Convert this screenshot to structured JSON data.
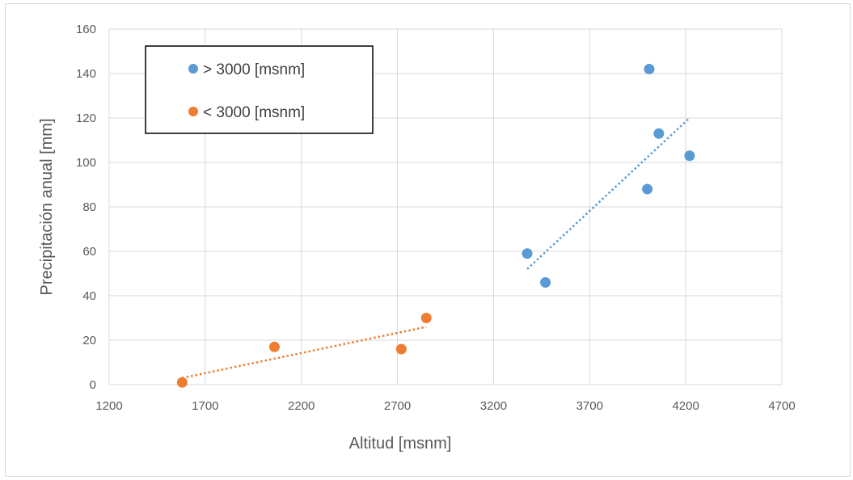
{
  "chart_data": {
    "type": "scatter",
    "xlabel": "Altitud [msnm]",
    "ylabel": "Precipitación anual [mm]",
    "xlim": [
      1200,
      4700
    ],
    "ylim": [
      0,
      160
    ],
    "xticks": [
      1200,
      1700,
      2200,
      2700,
      3200,
      3700,
      4200,
      4700
    ],
    "yticks": [
      0,
      20,
      40,
      60,
      80,
      100,
      120,
      140,
      160
    ],
    "grid": true,
    "legend_position": "top-left",
    "series": [
      {
        "name": "> 3000 [msnm]",
        "color": "#5b9bd5",
        "points": [
          [
            3375,
            59
          ],
          [
            3470,
            46
          ],
          [
            4000,
            88
          ],
          [
            4010,
            142
          ],
          [
            4060,
            113
          ],
          [
            4220,
            103
          ]
        ],
        "trendline": {
          "style": "dotted",
          "from": [
            3375,
            52
          ],
          "to": [
            4220,
            120
          ]
        }
      },
      {
        "name": "< 3000 [msnm]",
        "color": "#ed7d31",
        "points": [
          [
            1580,
            1
          ],
          [
            2060,
            17
          ],
          [
            2720,
            16
          ],
          [
            2850,
            30
          ]
        ],
        "trendline": {
          "style": "dotted",
          "from": [
            1580,
            3
          ],
          "to": [
            2850,
            26
          ]
        }
      }
    ]
  }
}
